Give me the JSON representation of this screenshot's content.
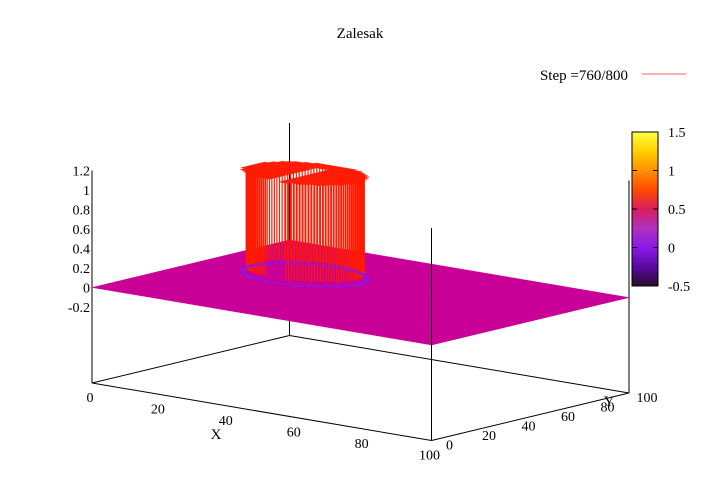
{
  "chart_data": {
    "type": "surface3d",
    "title": "Zalesak",
    "legend": {
      "label": "Step =760/800",
      "color": "#ff6666",
      "placement": "top-right"
    },
    "xlabel": "X",
    "ylabel": "Y",
    "xlim": [
      0,
      100
    ],
    "ylim": [
      0,
      100
    ],
    "zlim": [
      -0.2,
      1.2
    ],
    "x_ticks": [
      "0",
      "20",
      "40",
      "60",
      "80",
      "100"
    ],
    "y_ticks": [
      "0",
      "20",
      "40",
      "60",
      "80",
      "100"
    ],
    "z_ticks": [
      "1.2",
      "1",
      "0.8",
      "0.6",
      "0.4",
      "0.2",
      "0",
      "-0.2"
    ],
    "colorbar": {
      "range": [
        -0.5,
        1.5
      ],
      "ticks": [
        "1.5",
        "1",
        "0.5",
        "0",
        "-0.5"
      ],
      "palette": [
        "#2a0a2a",
        "#5a0aa0",
        "#8a18e8",
        "#b030c0",
        "#d81e5a",
        "#ff4a00",
        "#ff9000",
        "#ffd000",
        "#ffff40"
      ]
    },
    "surface": {
      "shape": "slotted cylinder",
      "center": [
        25,
        65
      ],
      "radius": 15,
      "height": 1.0,
      "base_level": 0,
      "slot_width": 5,
      "slot_length": 25
    },
    "colors": {
      "plane": "#cc0099",
      "mesh": "#ff2000"
    }
  }
}
